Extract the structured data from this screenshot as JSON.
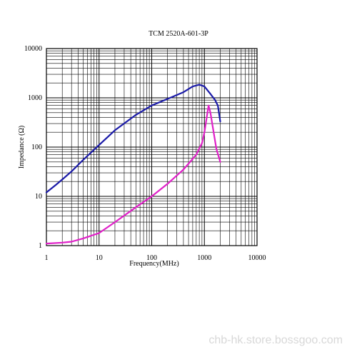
{
  "chart_data": {
    "type": "line",
    "title": "TCM 2520A-601-3P",
    "xlabel": "Frequency(MHz)",
    "ylabel": "Impedance (Ω)",
    "xscale": "log",
    "yscale": "log",
    "xlim": [
      1,
      10000
    ],
    "ylim": [
      1,
      10000
    ],
    "xticks": [
      "1",
      "10",
      "100",
      "1000",
      "10000"
    ],
    "yticks": [
      "1",
      "10",
      "100",
      "1000",
      "10000"
    ],
    "grid": true,
    "series": [
      {
        "color": "#1a1aa8",
        "points": [
          [
            1,
            12
          ],
          [
            1.5,
            17
          ],
          [
            2,
            22
          ],
          [
            3,
            32
          ],
          [
            5,
            55
          ],
          [
            10,
            110
          ],
          [
            20,
            220
          ],
          [
            50,
            450
          ],
          [
            100,
            700
          ],
          [
            200,
            950
          ],
          [
            400,
            1300
          ],
          [
            600,
            1700
          ],
          [
            800,
            1850
          ],
          [
            1000,
            1700
          ],
          [
            1300,
            1200
          ],
          [
            1600,
            900
          ],
          [
            1800,
            700
          ],
          [
            2000,
            330
          ]
        ]
      },
      {
        "color": "#e020c8",
        "points": [
          [
            1,
            1.1
          ],
          [
            2,
            1.15
          ],
          [
            3,
            1.2
          ],
          [
            5,
            1.4
          ],
          [
            10,
            1.8
          ],
          [
            20,
            3
          ],
          [
            50,
            6
          ],
          [
            100,
            10
          ],
          [
            200,
            18
          ],
          [
            400,
            35
          ],
          [
            700,
            70
          ],
          [
            900,
            120
          ],
          [
            1000,
            200
          ],
          [
            1100,
            380
          ],
          [
            1200,
            700
          ],
          [
            1300,
            500
          ],
          [
            1500,
            200
          ],
          [
            1700,
            90
          ],
          [
            2000,
            50
          ]
        ]
      }
    ]
  },
  "watermark": "chb-hk.store.bossgoo.com"
}
